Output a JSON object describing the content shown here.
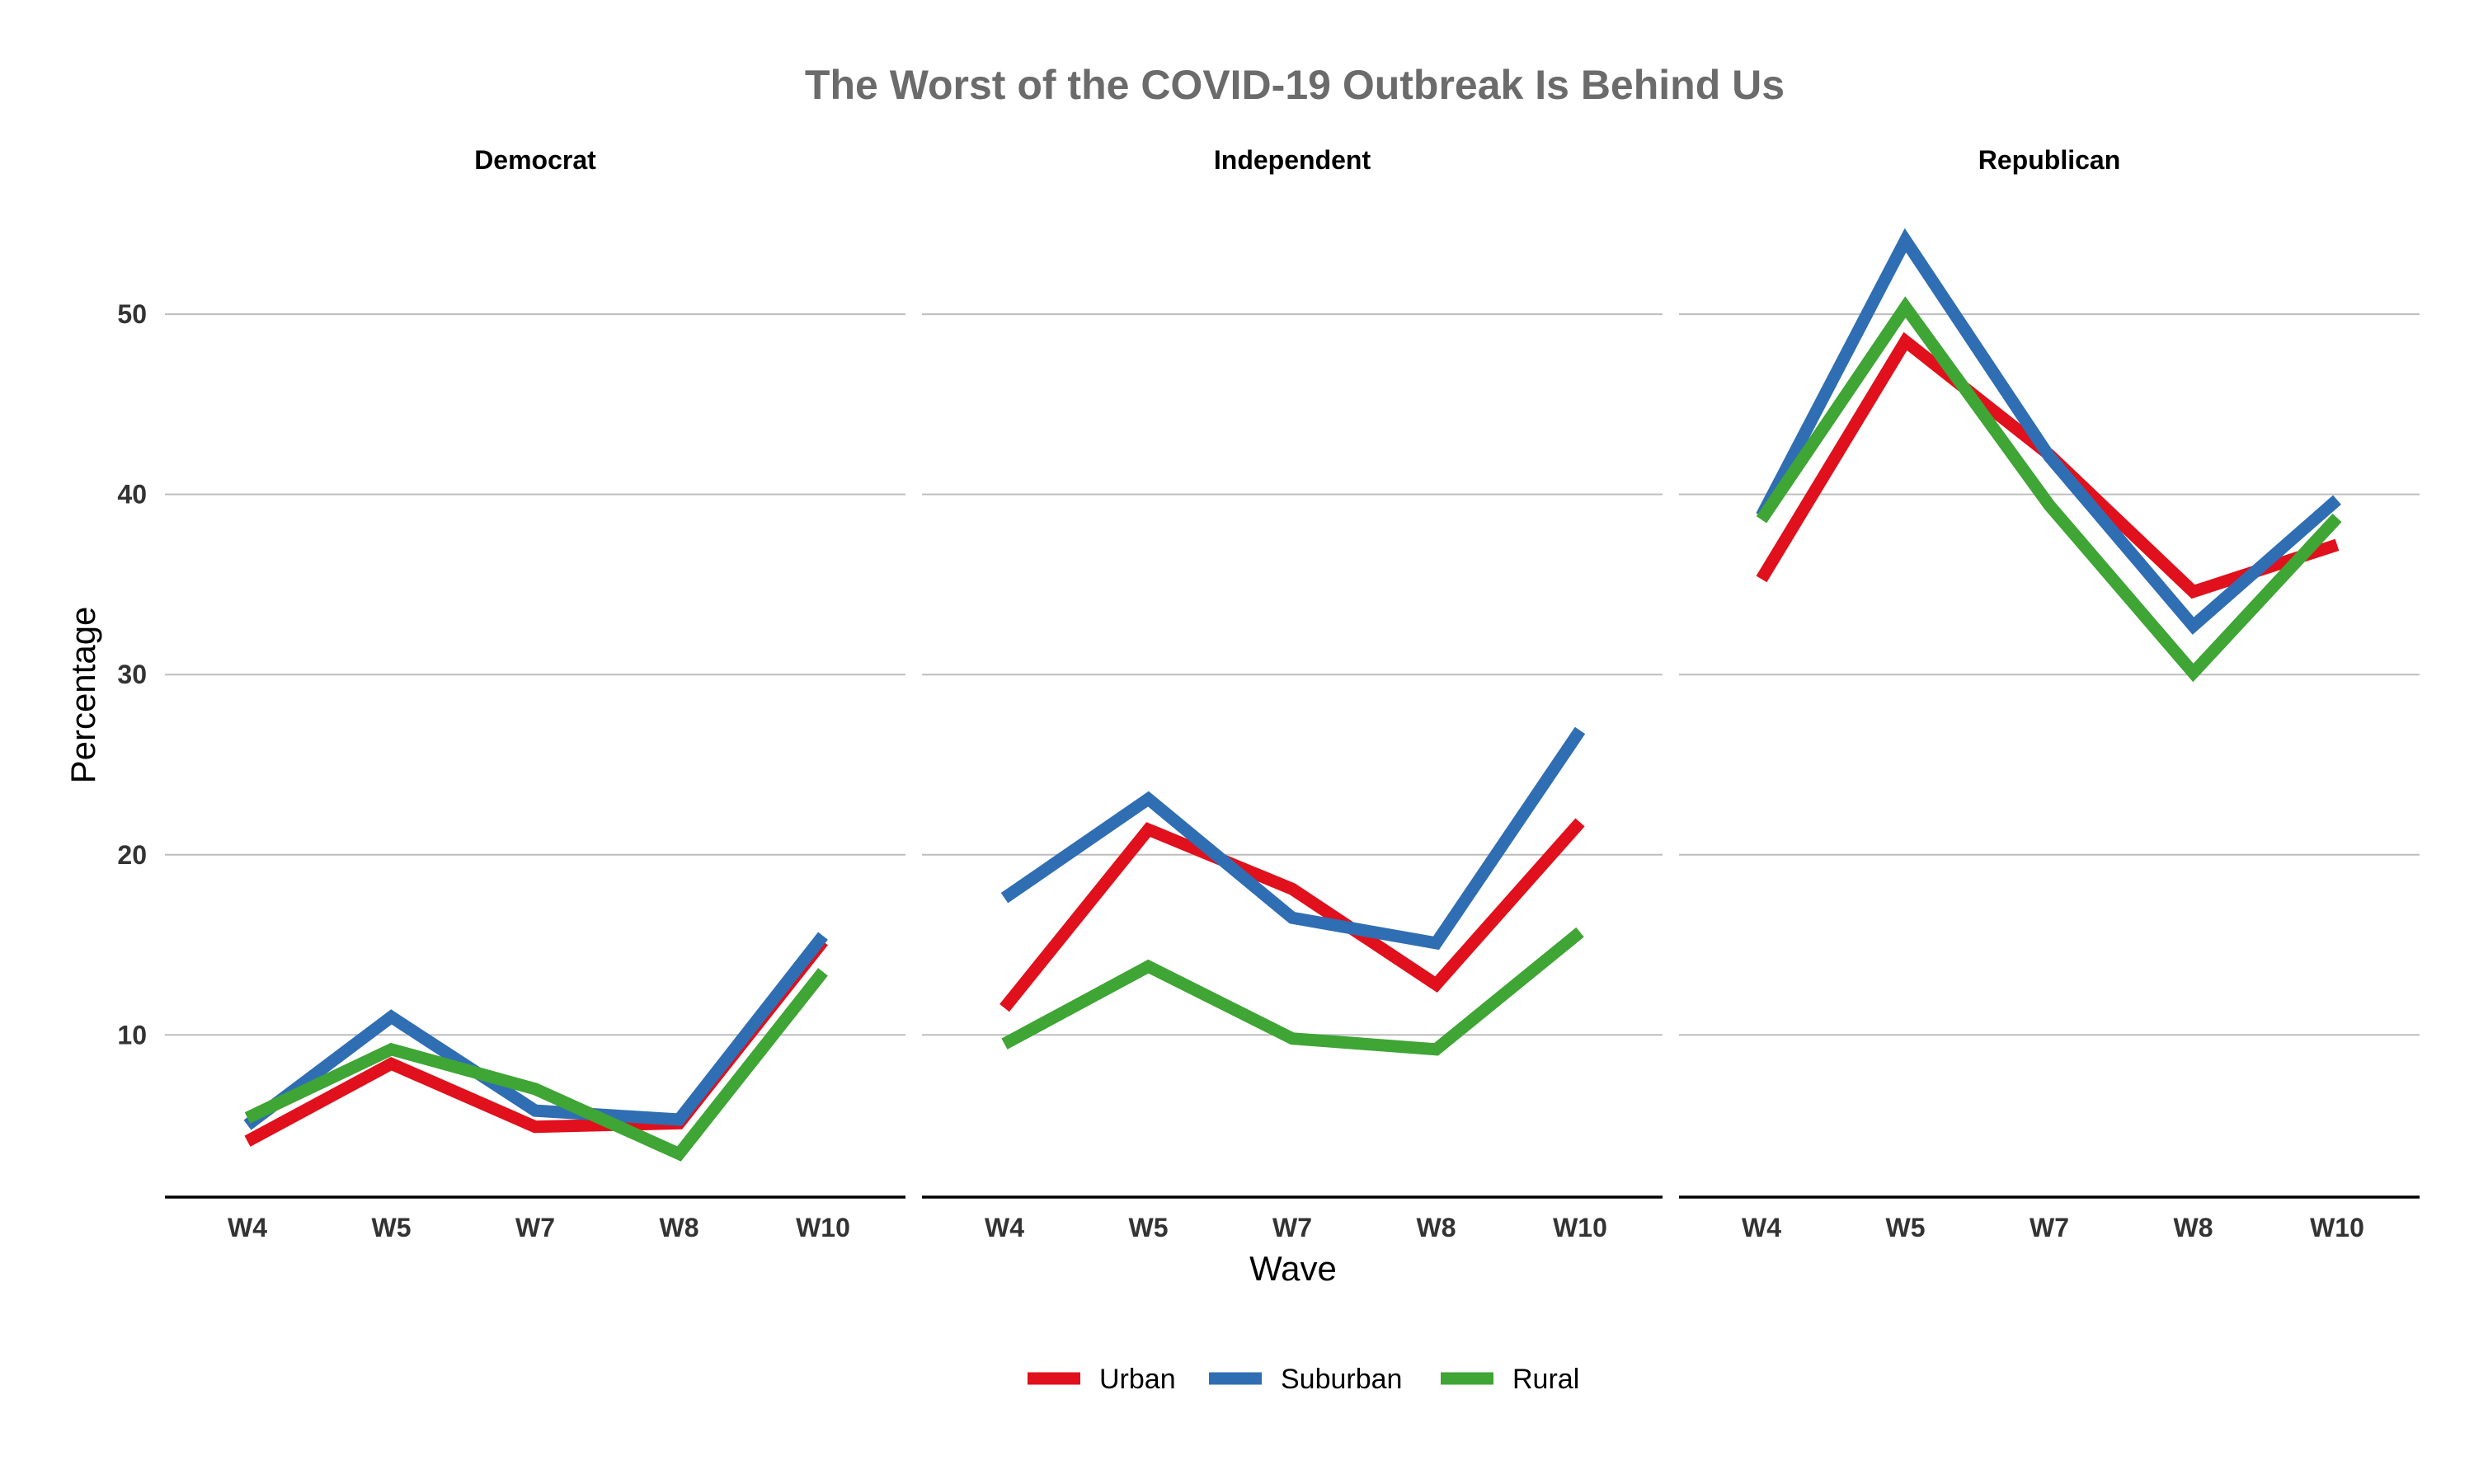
{
  "chart_data": {
    "type": "line",
    "title": "The Worst of the COVID-19 Outbreak Is Behind Us",
    "xlabel": "Wave",
    "ylabel": "Percentage",
    "ylim": [
      1,
      56
    ],
    "yticks": [
      10,
      20,
      30,
      40,
      50
    ],
    "grid": true,
    "legend_position": "bottom",
    "categories": [
      "W4",
      "W5",
      "W7",
      "W8",
      "W10"
    ],
    "series_styles": [
      {
        "name": "Urban",
        "color": "#e0101c"
      },
      {
        "name": "Suburban",
        "color": "#2f6eb3"
      },
      {
        "name": "Rural",
        "color": "#3fa535"
      }
    ],
    "panels": [
      {
        "label": "Democrat",
        "series": [
          {
            "name": "Urban",
            "values": [
              4.1,
              8.4,
              4.9,
              5.1,
              15.2
            ]
          },
          {
            "name": "Suburban",
            "values": [
              5.0,
              11.0,
              5.8,
              5.3,
              15.5
            ]
          },
          {
            "name": "Rural",
            "values": [
              5.4,
              9.2,
              7.0,
              3.4,
              13.5
            ]
          }
        ]
      },
      {
        "label": "Independent",
        "series": [
          {
            "name": "Urban",
            "values": [
              11.5,
              21.4,
              18.1,
              12.8,
              21.8
            ]
          },
          {
            "name": "Suburban",
            "values": [
              17.6,
              23.1,
              16.5,
              15.1,
              26.9
            ]
          },
          {
            "name": "Rural",
            "values": [
              9.5,
              13.8,
              9.8,
              9.2,
              15.7
            ]
          }
        ]
      },
      {
        "label": "Republican",
        "series": [
          {
            "name": "Urban",
            "values": [
              35.3,
              48.5,
              42.2,
              34.6,
              37.2
            ]
          },
          {
            "name": "Suburban",
            "values": [
              38.8,
              54.1,
              42.1,
              32.7,
              39.7
            ]
          },
          {
            "name": "Rural",
            "values": [
              38.6,
              50.4,
              39.4,
              30.1,
              38.7
            ]
          }
        ]
      }
    ]
  }
}
